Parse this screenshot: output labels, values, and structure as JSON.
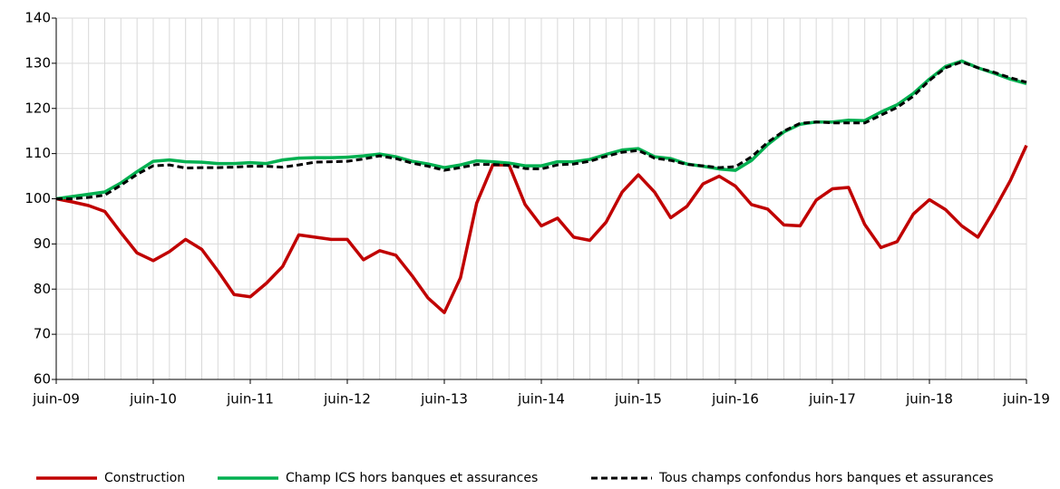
{
  "chart_data": {
    "type": "line",
    "categories": [
      "juin-09",
      null,
      null,
      null,
      null,
      null,
      "juin-10",
      null,
      null,
      null,
      null,
      null,
      "juin-11",
      null,
      null,
      null,
      null,
      null,
      "juin-12",
      null,
      null,
      null,
      null,
      null,
      "juin-13",
      null,
      null,
      null,
      null,
      null,
      "juin-14",
      null,
      null,
      null,
      null,
      null,
      "juin-15",
      null,
      null,
      null,
      null,
      null,
      "juin-16",
      null,
      null,
      null,
      null,
      null,
      "juin-17",
      null,
      null,
      null,
      null,
      null,
      "juin-18",
      null,
      null,
      null,
      null,
      null,
      "juin-19"
    ],
    "series": [
      {
        "name": "Construction",
        "color": "#c00000",
        "dashed": false,
        "values": [
          100,
          99.3,
          98.5,
          97.2,
          92.5,
          88,
          86.3,
          88.3,
          91,
          88.8,
          84,
          78.8,
          78.3,
          81.3,
          85,
          92,
          91.5,
          91,
          91,
          86.5,
          88.5,
          87.5,
          83,
          78,
          74.8,
          82.5,
          99,
          107.5,
          107.5,
          98.7,
          94,
          95.7,
          91.5,
          90.8,
          94.8,
          101.5,
          105.3,
          101.5,
          95.8,
          98.3,
          103.3,
          105,
          102.8,
          98.7,
          97.7,
          94.2,
          94,
          99.7,
          102.2,
          102.5,
          94.3,
          89.2,
          90.5,
          96.6,
          99.8,
          97.6,
          94,
          91.5,
          97.5,
          104,
          111.8
        ]
      },
      {
        "name": "Champ ICS hors banques et assurances",
        "color": "#00b050",
        "dashed": false,
        "values": [
          100,
          100.5,
          101,
          101.5,
          103.5,
          106,
          108.3,
          108.6,
          108.2,
          108.1,
          107.8,
          107.8,
          108,
          107.8,
          108.6,
          109,
          109.1,
          109.1,
          109.2,
          109.5,
          109.9,
          109.3,
          108.3,
          107.7,
          106.9,
          107.5,
          108.4,
          108.2,
          107.9,
          107.3,
          107.3,
          108.2,
          108.2,
          108.7,
          109.8,
          110.8,
          111.1,
          109.3,
          108.9,
          107.7,
          107.2,
          106.6,
          106.3,
          108.5,
          112,
          114.8,
          116.5,
          117,
          117,
          117.4,
          117.3,
          119.2,
          120.8,
          123.3,
          126.5,
          129.3,
          130.5,
          129,
          127.8,
          126.5,
          125.5
        ]
      },
      {
        "name": "Tous champs confondus hors banques et assurances",
        "color": "#000000",
        "dashed": true,
        "values": [
          100,
          100,
          100.3,
          100.8,
          103,
          105.4,
          107.3,
          107.5,
          106.8,
          106.9,
          106.9,
          107,
          107.2,
          107.2,
          107,
          107.5,
          108.1,
          108.2,
          108.3,
          108.8,
          109.5,
          108.9,
          107.9,
          107.2,
          106.3,
          106.9,
          107.6,
          107.6,
          107.4,
          106.7,
          106.6,
          107.5,
          107.7,
          108.3,
          109.4,
          110.3,
          110.7,
          109,
          108.5,
          107.6,
          107.3,
          106.9,
          107.1,
          109.3,
          112.5,
          115,
          116.7,
          117,
          116.8,
          116.8,
          116.8,
          118.5,
          120.2,
          122.7,
          126.2,
          129,
          130.3,
          129,
          128,
          126.8,
          125.8
        ]
      }
    ],
    "ylim": [
      60,
      140
    ],
    "yticks": [
      60,
      70,
      80,
      90,
      100,
      110,
      120,
      130,
      140
    ],
    "grid": true
  }
}
